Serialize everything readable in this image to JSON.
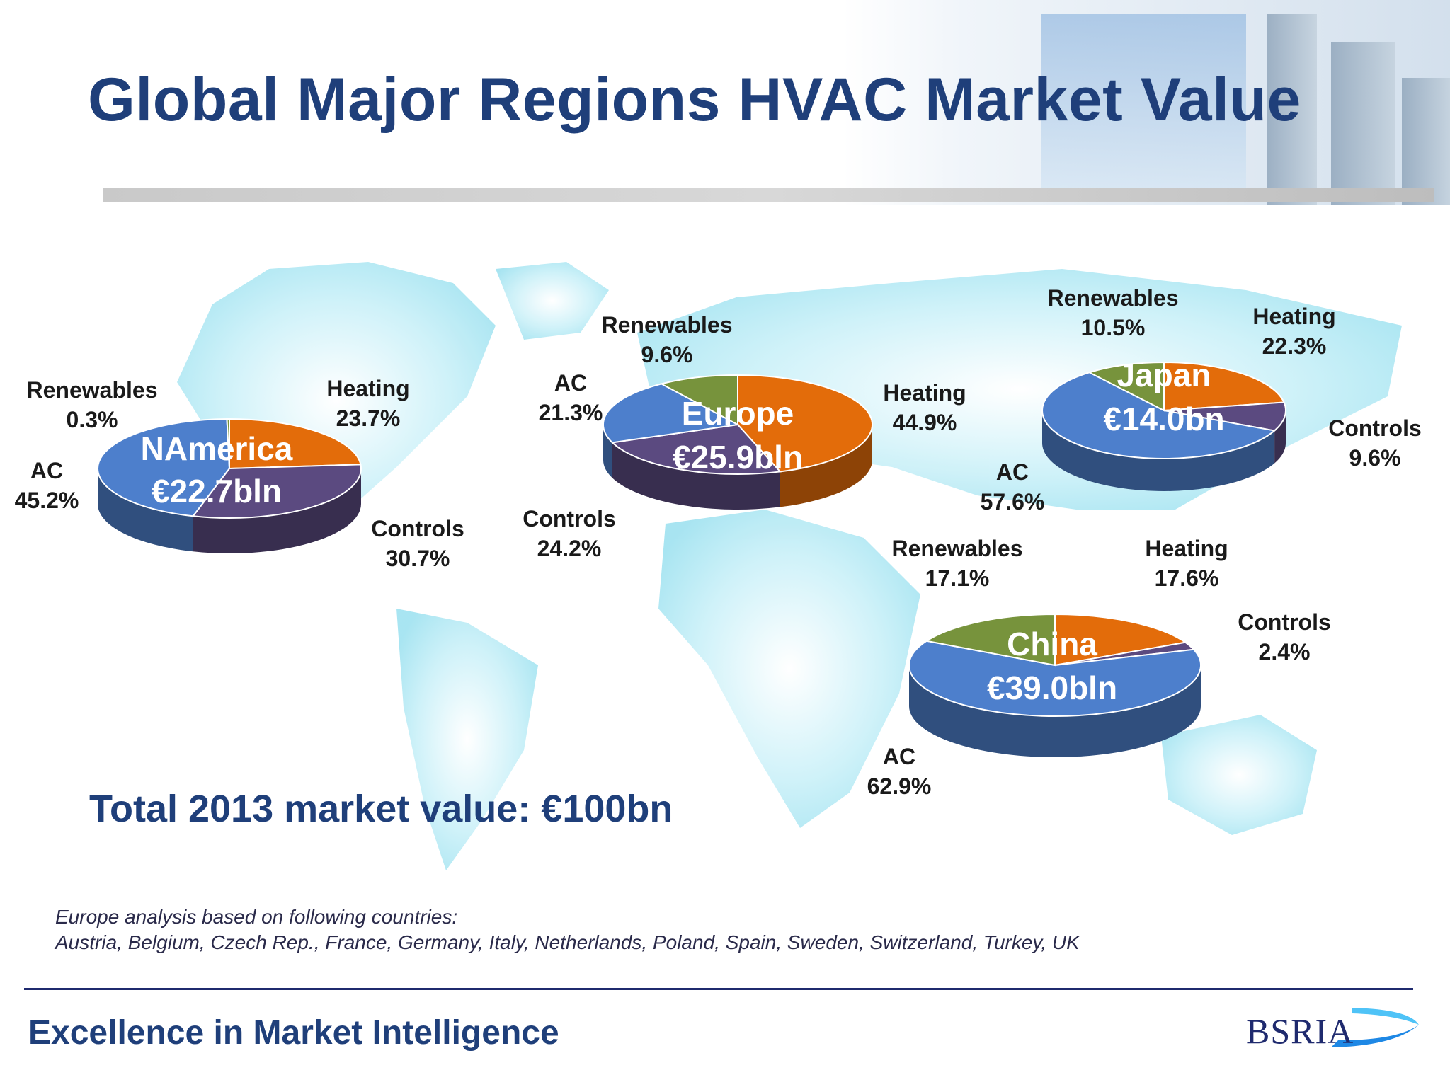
{
  "title": "Global Major Regions HVAC Market Value",
  "total_label": "Total 2013 market value: €100bn",
  "footnote": {
    "line1": "Europe analysis based on following countries:",
    "line2": "Austria, Belgium, Czech Rep., France, Germany, Italy, Netherlands, Poland, Spain, Sweden, Switzerland, Turkey,  UK"
  },
  "footer": {
    "tagline": "Excellence in Market Intelligence",
    "logo_text": "BSRIA"
  },
  "colors": {
    "AC": "#4d7fcc",
    "Heating": "#e36c0a",
    "Controls": "#5b4a80",
    "Renewables": "#77933c",
    "title": "#1f3f7a"
  },
  "chart_data": [
    {
      "type": "pie",
      "region": "NAmerica",
      "value": "€22.7bln",
      "slices": [
        {
          "name": "Heating",
          "value": 23.7,
          "pct": "23.7%"
        },
        {
          "name": "Controls",
          "value": 30.7,
          "pct": "30.7%"
        },
        {
          "name": "AC",
          "value": 45.2,
          "pct": "45.2%"
        },
        {
          "name": "Renewables",
          "value": 0.3,
          "pct": "0.3%"
        }
      ]
    },
    {
      "type": "pie",
      "region": "Europe",
      "value": "€25.9bln",
      "slices": [
        {
          "name": "Heating",
          "value": 44.9,
          "pct": "44.9%"
        },
        {
          "name": "Controls",
          "value": 24.2,
          "pct": "24.2%"
        },
        {
          "name": "AC",
          "value": 21.3,
          "pct": "21.3%"
        },
        {
          "name": "Renewables",
          "value": 9.6,
          "pct": "9.6%"
        }
      ]
    },
    {
      "type": "pie",
      "region": "Japan",
      "value": "€14.0bn",
      "slices": [
        {
          "name": "Heating",
          "value": 22.3,
          "pct": "22.3%"
        },
        {
          "name": "Controls",
          "value": 9.6,
          "pct": "9.6%"
        },
        {
          "name": "AC",
          "value": 57.6,
          "pct": "57.6%"
        },
        {
          "name": "Renewables",
          "value": 10.5,
          "pct": "10.5%"
        }
      ]
    },
    {
      "type": "pie",
      "region": "China",
      "value": "€39.0bln",
      "slices": [
        {
          "name": "Heating",
          "value": 17.6,
          "pct": "17.6%"
        },
        {
          "name": "Controls",
          "value": 2.4,
          "pct": "2.4%"
        },
        {
          "name": "AC",
          "value": 62.9,
          "pct": "62.9%"
        },
        {
          "name": "Renewables",
          "value": 17.1,
          "pct": "17.1%"
        }
      ]
    }
  ]
}
